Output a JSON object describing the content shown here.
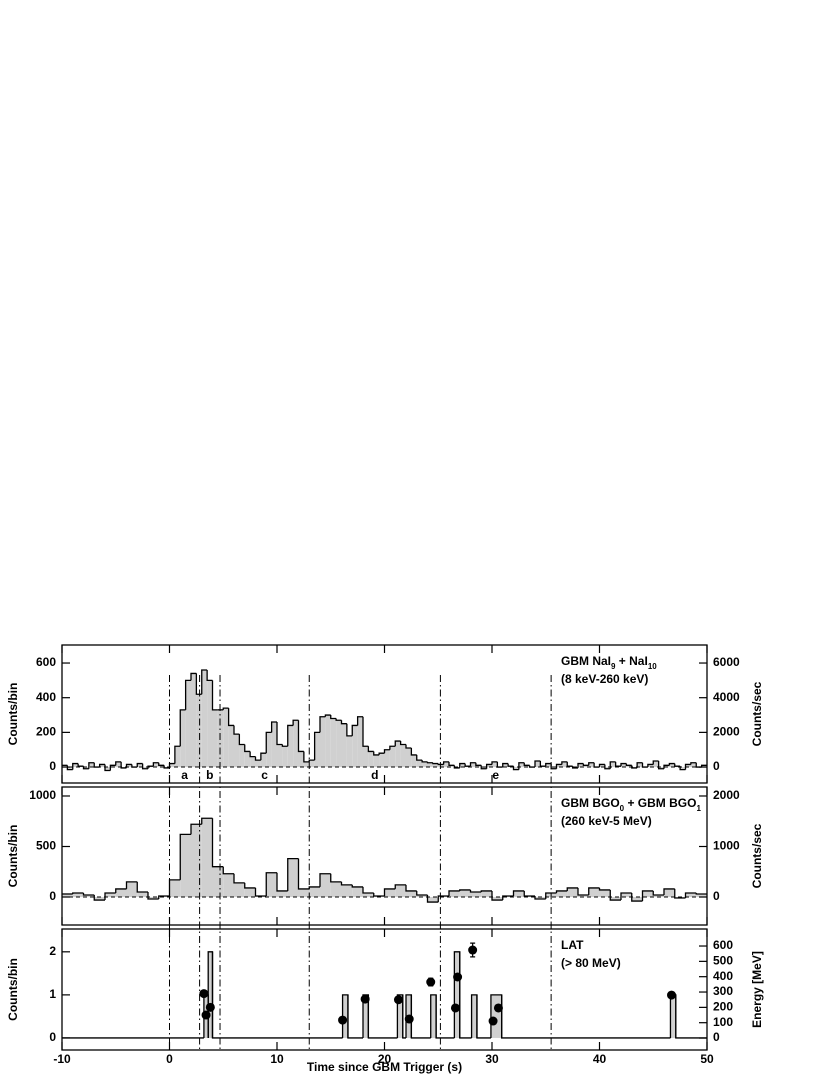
{
  "chart_data": [
    {
      "type": "histogram",
      "ylabel": "Counts/bin",
      "y2label": "Counts/sec",
      "label": [
        [
          {
            "text": "GBM NaI"
          },
          {
            "text": "9",
            "sub": true
          },
          {
            "text": " + NaI"
          },
          {
            "text": "10",
            "sub": true
          }
        ],
        [
          {
            "text": "(8 keV-260 keV)"
          }
        ]
      ],
      "xlim": [
        -10,
        50
      ],
      "xticks": [
        -10,
        0,
        10,
        20,
        30,
        40,
        50
      ],
      "ylim": [
        -92,
        704
      ],
      "yticks": [
        0,
        200,
        400,
        600
      ],
      "y2lim": [
        -920,
        7040
      ],
      "y2ticks": [
        0,
        2000,
        4000,
        6000
      ],
      "zero_line": true,
      "color": "#d0d0d0",
      "intervals": {
        "edges": [
          0,
          2.8,
          4.7,
          13,
          25.2,
          35.5
        ],
        "labels": [
          "a",
          "b",
          "c",
          "d",
          "e"
        ]
      },
      "bins": [
        -10,
        -9.5,
        -9,
        -8.5,
        -8,
        -7.5,
        -7,
        -6.5,
        -6,
        -5.5,
        -5,
        -4.5,
        -4,
        -3.5,
        -3,
        -2.5,
        -2,
        -1.5,
        -1,
        -0.5,
        0,
        0.5,
        1,
        1.5,
        2,
        2.5,
        3,
        3.5,
        4,
        4.5,
        5,
        5.5,
        6,
        6.5,
        7,
        7.5,
        8,
        8.5,
        9,
        9.5,
        10,
        10.5,
        11,
        11.5,
        12,
        12.5,
        13,
        13.5,
        14,
        14.5,
        15,
        15.5,
        16,
        16.5,
        17,
        17.5,
        18,
        18.5,
        19,
        19.5,
        20,
        20.5,
        21,
        21.5,
        22,
        22.5,
        23,
        23.5,
        24,
        24.5,
        25,
        25.5,
        26,
        26.5,
        27,
        27.5,
        28,
        28.5,
        29,
        29.5,
        30,
        30.5,
        31,
        31.5,
        32,
        32.5,
        33,
        33.5,
        34,
        34.5,
        35,
        35.5,
        36,
        36.5,
        37,
        37.5,
        38,
        38.5,
        39,
        39.5,
        40,
        40.5,
        41,
        41.5,
        42,
        42.5,
        43,
        43.5,
        44,
        44.5,
        45,
        45.5,
        46,
        46.5,
        47,
        47.5,
        48,
        48.5,
        49,
        49.5,
        50
      ],
      "values": [
        10,
        -15,
        20,
        5,
        -10,
        25,
        0,
        15,
        -20,
        10,
        30,
        -5,
        15,
        0,
        20,
        -10,
        5,
        25,
        10,
        -5,
        20,
        120,
        330,
        500,
        540,
        420,
        560,
        500,
        330,
        330,
        340,
        240,
        190,
        130,
        90,
        60,
        40,
        80,
        200,
        260,
        130,
        120,
        240,
        270,
        90,
        30,
        40,
        200,
        290,
        300,
        280,
        270,
        250,
        180,
        240,
        290,
        120,
        90,
        70,
        80,
        100,
        120,
        150,
        130,
        110,
        70,
        40,
        30,
        25,
        20,
        15,
        30,
        10,
        -5,
        20,
        5,
        25,
        10,
        -10,
        15,
        30,
        0,
        20,
        5,
        -15,
        25,
        10,
        0,
        35,
        5,
        20,
        -10,
        15,
        30,
        5,
        -5,
        20,
        10,
        25,
        0,
        15,
        -10,
        30,
        5,
        20,
        10,
        -5,
        25,
        0,
        15,
        35,
        -10,
        10,
        20,
        5,
        -15,
        15,
        25,
        0,
        10
      ]
    },
    {
      "type": "histogram",
      "ylabel": "Counts/bin",
      "y2label": "Counts/sec",
      "label": [
        [
          {
            "text": "GBM BGO"
          },
          {
            "text": "0",
            "sub": true
          },
          {
            "text": " + GBM BGO"
          },
          {
            "text": "1",
            "sub": true
          }
        ],
        [
          {
            "text": "(260 keV-5 MeV)"
          }
        ]
      ],
      "xlim": [
        -10,
        50
      ],
      "xticks": [
        -10,
        0,
        10,
        20,
        30,
        40,
        50
      ],
      "ylim": [
        -277,
        1089
      ],
      "yticks": [
        0,
        500,
        1000
      ],
      "y2lim": [
        -554,
        2178
      ],
      "y2ticks": [
        0,
        1000,
        2000
      ],
      "zero_line": true,
      "color": "#d0d0d0",
      "bins": [
        -10,
        -9,
        -8,
        -7,
        -6,
        -5,
        -4,
        -3,
        -2,
        -1,
        0,
        1,
        2,
        3,
        4,
        5,
        6,
        7,
        8,
        9,
        10,
        11,
        12,
        13,
        14,
        15,
        16,
        17,
        18,
        19,
        20,
        21,
        22,
        23,
        24,
        25,
        26,
        27,
        28,
        29,
        30,
        31,
        32,
        33,
        34,
        35,
        36,
        37,
        38,
        39,
        40,
        41,
        42,
        43,
        44,
        45,
        46,
        47,
        48,
        49,
        50
      ],
      "values": [
        30,
        40,
        20,
        -30,
        40,
        80,
        150,
        50,
        -20,
        10,
        170,
        620,
        720,
        780,
        300,
        230,
        140,
        90,
        10,
        240,
        60,
        380,
        80,
        100,
        230,
        150,
        120,
        100,
        40,
        10,
        80,
        120,
        60,
        20,
        -50,
        10,
        60,
        70,
        50,
        60,
        -30,
        10,
        60,
        10,
        -20,
        40,
        60,
        90,
        20,
        90,
        70,
        -30,
        40,
        -40,
        60,
        20,
        80,
        -10,
        40,
        30
      ]
    },
    {
      "type": "histogram",
      "ylabel": "Counts/bin",
      "y2label": "Energy [MeV]",
      "xlabel": "Time since GBM Trigger (s)",
      "label": [
        [
          {
            "text": "LAT"
          }
        ],
        [
          {
            "text": "(> 80 MeV)"
          }
        ]
      ],
      "xlim": [
        -10,
        50
      ],
      "xticks": [
        -10,
        0,
        10,
        20,
        30,
        40,
        50
      ],
      "ylim": [
        -0.28,
        2.53
      ],
      "yticks": [
        0,
        1,
        2
      ],
      "y2lim": [
        -78,
        711
      ],
      "y2ticks": [
        0,
        100,
        200,
        300,
        400,
        500,
        600
      ],
      "zero_line": false,
      "color": "#d0d0d0",
      "bins": [
        -10,
        3.2,
        3.6,
        4.0,
        16.1,
        16.6,
        18.0,
        18.5,
        21.2,
        21.7,
        22.0,
        22.5,
        24.3,
        24.8,
        26.5,
        27.0,
        28.1,
        28.6,
        29.9,
        30.9,
        46.6,
        47.1,
        50
      ],
      "values": [
        0,
        1,
        2,
        0,
        1,
        0,
        1,
        0,
        1,
        0,
        1,
        0,
        1,
        0,
        2,
        0,
        1,
        0,
        1,
        0,
        1,
        0
      ],
      "points": {
        "axis": "y2",
        "color": "#000000",
        "x": [
          3.2,
          3.4,
          3.8,
          16.1,
          18.2,
          21.3,
          22.3,
          24.3,
          26.6,
          26.8,
          28.2,
          30.1,
          30.6,
          46.7
        ],
        "y": [
          290,
          150,
          200,
          117,
          254,
          250,
          124,
          365,
          196,
          398,
          574,
          111,
          196,
          280
        ],
        "errors": [
          10,
          10,
          10,
          10,
          12,
          10,
          10,
          25,
          10,
          20,
          45,
          10,
          10,
          12
        ]
      }
    }
  ]
}
